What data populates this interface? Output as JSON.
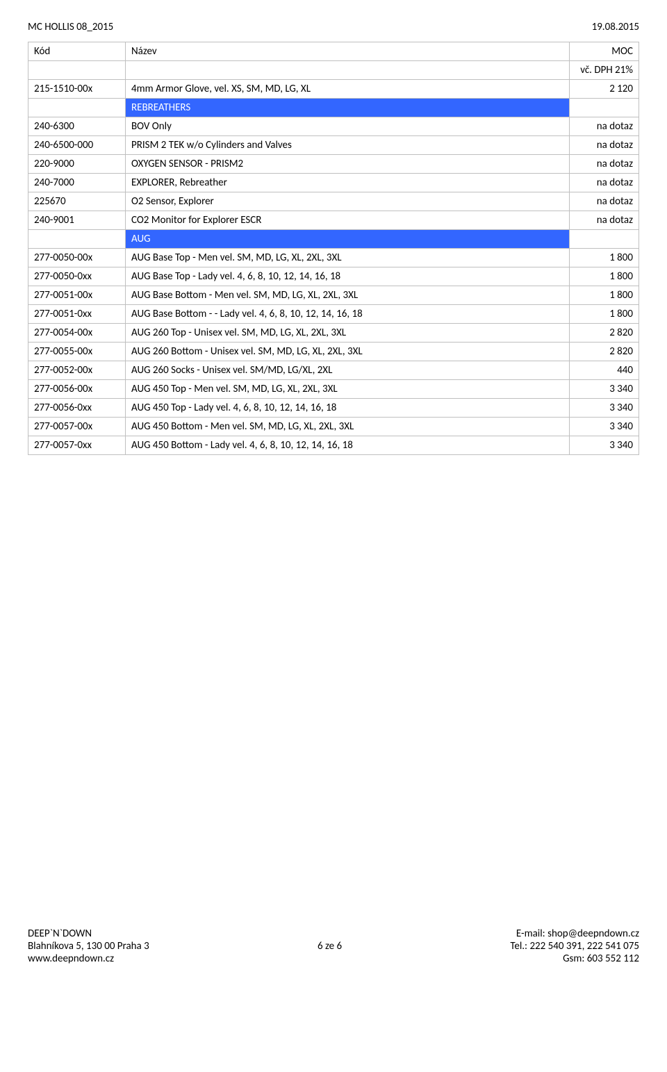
{
  "header": {
    "left": "MC HOLLIS 08_2015",
    "right": "19.08.2015"
  },
  "table": {
    "head": {
      "code": "Kód",
      "name": "Název",
      "price": "MOC",
      "sub": "vč. DPH 21%"
    },
    "rows": [
      {
        "type": "data",
        "code": "215-1510-00x",
        "name": "4mm Armor Glove, vel. XS, SM, MD, LG, XL",
        "price": "2 120"
      },
      {
        "type": "section",
        "label": "REBREATHERS"
      },
      {
        "type": "data",
        "code": "240-6300",
        "name": "BOV Only",
        "price": "na dotaz"
      },
      {
        "type": "data",
        "code": "240-6500-000",
        "name": "PRISM 2 TEK w/o Cylinders and Valves",
        "price": "na dotaz"
      },
      {
        "type": "data",
        "code": "220-9000",
        "name": "OXYGEN SENSOR - PRISM2",
        "price": "na dotaz"
      },
      {
        "type": "data",
        "code": "240-7000",
        "name": "EXPLORER, Rebreather",
        "price": "na dotaz"
      },
      {
        "type": "data",
        "code": "225670",
        "name": "O2 Sensor, Explorer",
        "price": "na dotaz"
      },
      {
        "type": "data",
        "code": "240-9001",
        "name": "CO2 Monitor for Explorer ESCR",
        "price": "na dotaz"
      },
      {
        "type": "section",
        "label": "AUG"
      },
      {
        "type": "data",
        "code": "277-0050-00x",
        "name": "AUG Base Top - Men vel. SM, MD, LG, XL, 2XL, 3XL",
        "price": "1 800"
      },
      {
        "type": "data",
        "code": "277-0050-0xx",
        "name": "AUG Base Top - Lady vel. 4, 6, 8, 10, 12, 14, 16, 18",
        "price": "1 800"
      },
      {
        "type": "data",
        "code": "277-0051-00x",
        "name": "AUG Base Bottom - Men vel. SM, MD, LG, XL, 2XL, 3XL",
        "price": "1 800"
      },
      {
        "type": "data",
        "code": "277-0051-0xx",
        "name": "AUG Base Bottom -  - Lady vel. 4, 6, 8, 10, 12, 14, 16, 18",
        "price": "1 800"
      },
      {
        "type": "data",
        "code": "277-0054-00x",
        "name": "AUG 260 Top - Unisex vel. SM, MD, LG, XL, 2XL, 3XL",
        "price": "2 820"
      },
      {
        "type": "data",
        "code": "277-0055-00x",
        "name": "AUG 260 Bottom - Unisex vel. SM, MD, LG, XL, 2XL, 3XL",
        "price": "2 820"
      },
      {
        "type": "data",
        "code": "277-0052-00x",
        "name": "AUG 260 Socks - Unisex vel. SM/MD, LG/XL, 2XL",
        "price": "440"
      },
      {
        "type": "data",
        "code": "277-0056-00x",
        "name": "AUG 450 Top - Men vel. SM, MD, LG, XL, 2XL, 3XL",
        "price": "3 340"
      },
      {
        "type": "data",
        "code": "277-0056-0xx",
        "name": "AUG 450 Top - Lady vel. 4, 6, 8, 10, 12, 14, 16, 18",
        "price": "3 340"
      },
      {
        "type": "data",
        "code": "277-0057-00x",
        "name": "AUG 450 Bottom - Men vel. SM, MD, LG, XL, 2XL, 3XL",
        "price": "3 340"
      },
      {
        "type": "data",
        "code": "277-0057-0xx",
        "name": "AUG 450 Bottom - Lady vel. 4, 6, 8, 10, 12, 14, 16, 18",
        "price": "3 340"
      }
    ]
  },
  "footer": {
    "left1": "DEEP`N`DOWN",
    "left2": "Blahníkova 5, 130 00 Praha 3",
    "left3": "www.deepndown.cz",
    "center": "6 ze 6",
    "right1": "E-mail: shop@deepndown.cz",
    "right2": "Tel.: 222 540 391, 222 541 075",
    "right3": "Gsm: 603 552 112"
  }
}
